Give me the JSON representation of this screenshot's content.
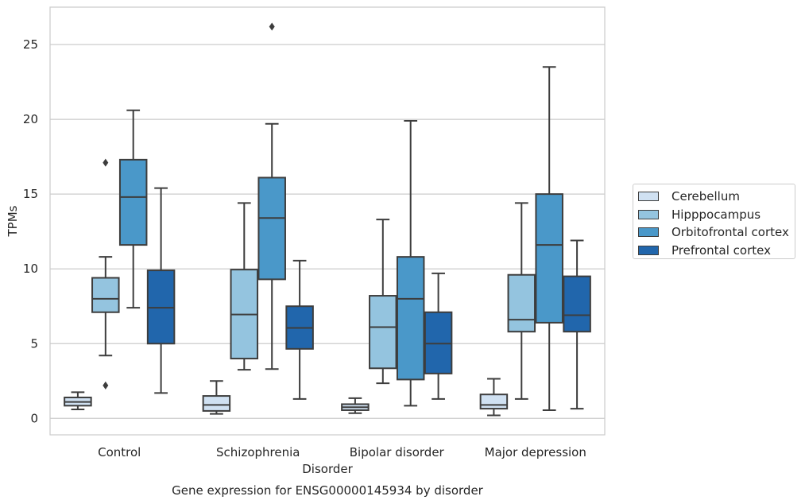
{
  "caption": "Gene expression for ENSG00000145934 by disorder",
  "chart_data": {
    "type": "box",
    "xlabel": "Disorder",
    "ylabel": "TPMs",
    "ylim": [
      -1.1,
      27.5
    ],
    "yticks": [
      0,
      5,
      10,
      15,
      20,
      25
    ],
    "grid": "horizontal",
    "legend_position": "right",
    "categories": [
      "Control",
      "Schizophrenia",
      "Bipolar disorder",
      "Major depression"
    ],
    "series": [
      {
        "name": "Cerebellum",
        "color": "#d0e1f2",
        "boxes": [
          {
            "whisker_low": 0.6,
            "q1": 0.85,
            "median": 1.1,
            "q3": 1.4,
            "whisker_high": 1.75,
            "outliers": []
          },
          {
            "whisker_low": 0.3,
            "q1": 0.5,
            "median": 0.9,
            "q3": 1.5,
            "whisker_high": 2.5,
            "outliers": []
          },
          {
            "whisker_low": 0.35,
            "q1": 0.55,
            "median": 0.75,
            "q3": 0.95,
            "whisker_high": 1.35,
            "outliers": []
          },
          {
            "whisker_low": 0.2,
            "q1": 0.65,
            "median": 0.9,
            "q3": 1.6,
            "whisker_high": 2.65,
            "outliers": []
          }
        ]
      },
      {
        "name": "Hipppocampus",
        "color": "#94c4df",
        "boxes": [
          {
            "whisker_low": 4.2,
            "q1": 7.1,
            "median": 8.0,
            "q3": 9.4,
            "whisker_high": 10.8,
            "outliers": [
              17.1,
              2.2
            ]
          },
          {
            "whisker_low": 3.25,
            "q1": 4.0,
            "median": 6.95,
            "q3": 9.95,
            "whisker_high": 14.4,
            "outliers": []
          },
          {
            "whisker_low": 2.35,
            "q1": 3.35,
            "median": 6.1,
            "q3": 8.2,
            "whisker_high": 13.3,
            "outliers": []
          },
          {
            "whisker_low": 1.3,
            "q1": 5.8,
            "median": 6.6,
            "q3": 9.6,
            "whisker_high": 14.4,
            "outliers": []
          }
        ]
      },
      {
        "name": "Orbitofrontal cortex",
        "color": "#4a98c9",
        "boxes": [
          {
            "whisker_low": 7.4,
            "q1": 11.6,
            "median": 14.8,
            "q3": 17.3,
            "whisker_high": 20.6,
            "outliers": []
          },
          {
            "whisker_low": 3.3,
            "q1": 9.3,
            "median": 13.4,
            "q3": 16.1,
            "whisker_high": 19.7,
            "outliers": [
              26.2
            ]
          },
          {
            "whisker_low": 0.85,
            "q1": 2.6,
            "median": 8.0,
            "q3": 10.8,
            "whisker_high": 19.9,
            "outliers": []
          },
          {
            "whisker_low": 0.55,
            "q1": 6.4,
            "median": 11.6,
            "q3": 15.0,
            "whisker_high": 23.5,
            "outliers": []
          }
        ]
      },
      {
        "name": "Prefrontal cortex",
        "color": "#2166ac",
        "boxes": [
          {
            "whisker_low": 1.7,
            "q1": 5.0,
            "median": 7.4,
            "q3": 9.9,
            "whisker_high": 15.4,
            "outliers": []
          },
          {
            "whisker_low": 1.3,
            "q1": 4.65,
            "median": 6.05,
            "q3": 7.5,
            "whisker_high": 10.55,
            "outliers": []
          },
          {
            "whisker_low": 1.3,
            "q1": 3.0,
            "median": 5.0,
            "q3": 7.1,
            "whisker_high": 9.7,
            "outliers": []
          },
          {
            "whisker_low": 0.65,
            "q1": 5.8,
            "median": 6.9,
            "q3": 9.5,
            "whisker_high": 11.9,
            "outliers": []
          }
        ]
      }
    ]
  }
}
